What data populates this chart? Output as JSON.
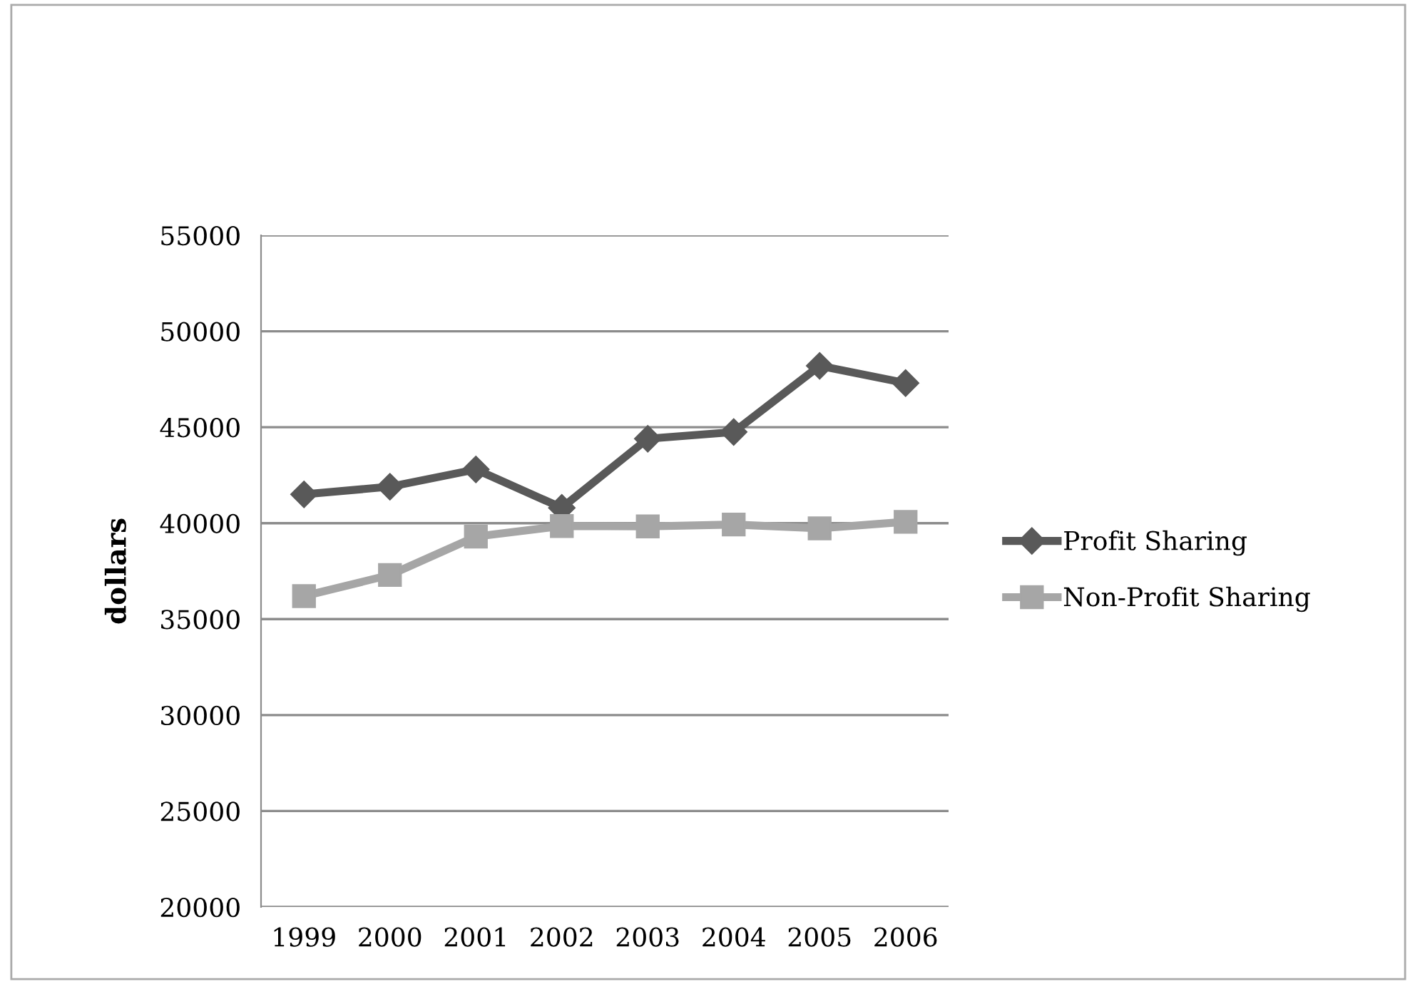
{
  "chart_data": {
    "type": "line",
    "ylabel": "dollars",
    "categories": [
      "1999",
      "2000",
      "2001",
      "2002",
      "2003",
      "2004",
      "2005",
      "2006"
    ],
    "series": [
      {
        "name": "Profit Sharing",
        "color": "#595959",
        "marker": "diamond",
        "values": [
          41500,
          41900,
          42800,
          40800,
          44400,
          44750,
          48200,
          47300
        ]
      },
      {
        "name": "Non-Profit Sharing",
        "color": "#a6a6a6",
        "marker": "square",
        "values": [
          36200,
          37300,
          39300,
          39850,
          39830,
          39930,
          39730,
          40070
        ]
      }
    ],
    "ylim": [
      20000,
      55000
    ],
    "yticks": [
      20000,
      25000,
      30000,
      35000,
      40000,
      45000,
      50000,
      55000
    ],
    "grid": "y",
    "legend": "right"
  }
}
